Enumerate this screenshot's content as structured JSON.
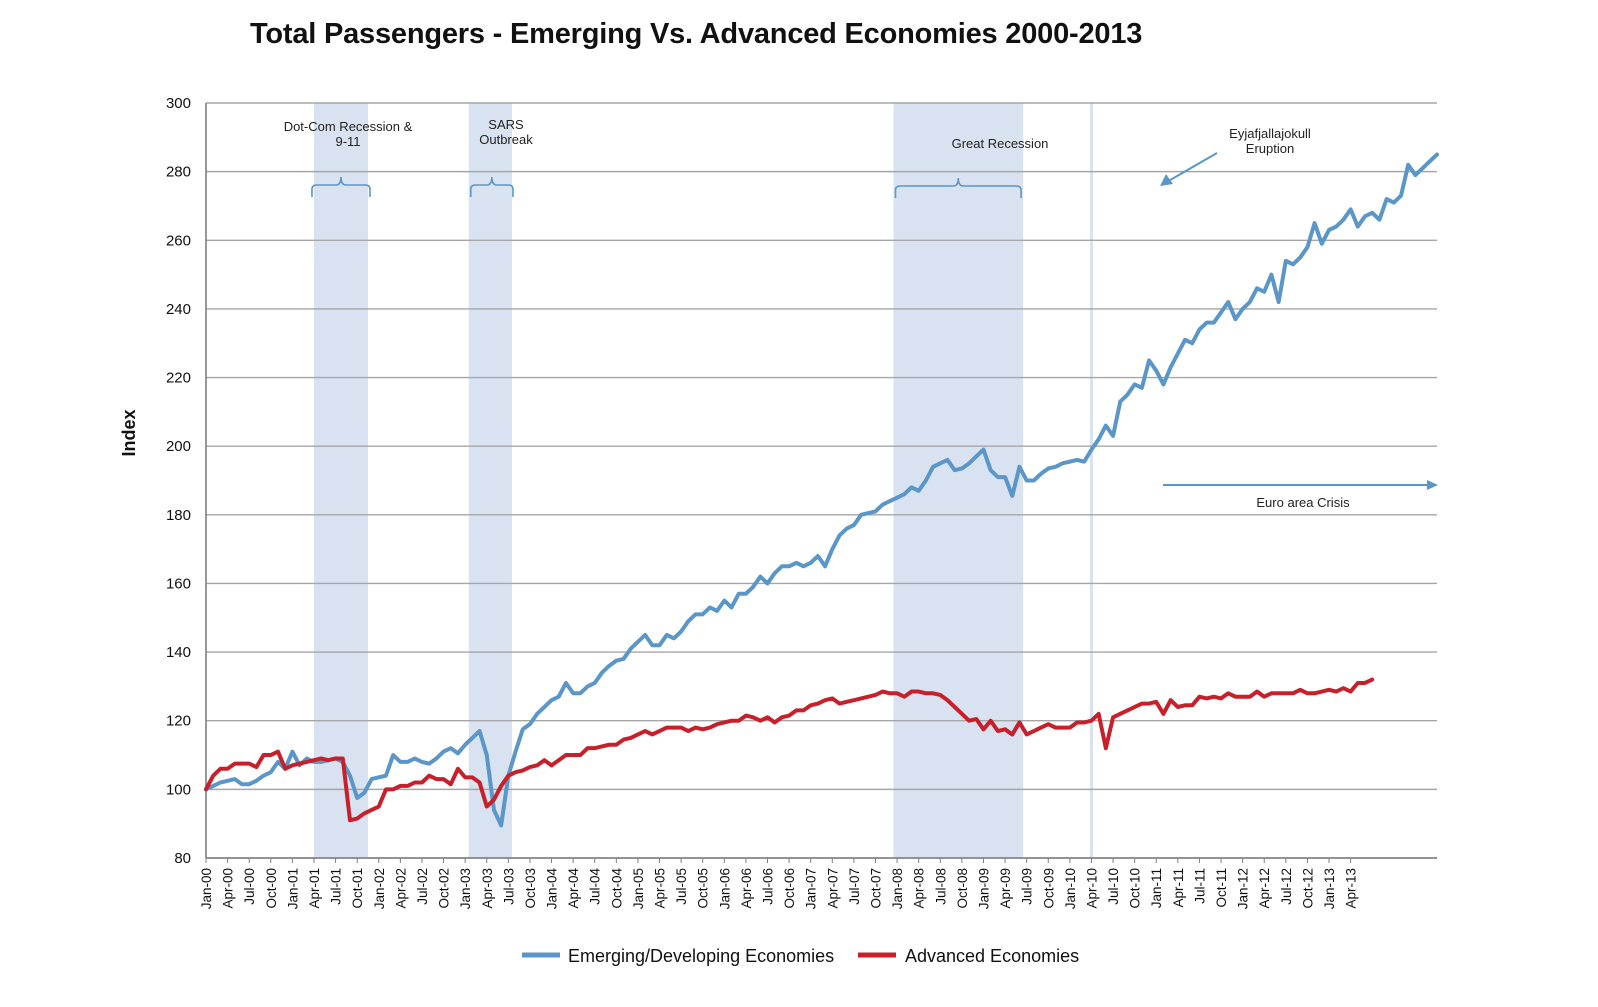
{
  "chart_data": {
    "type": "line",
    "title": "Total Passengers - Emerging Vs. Advanced Economies 2000-2013",
    "ylabel": "Index",
    "xlabel": "",
    "ylim": [
      80,
      300
    ],
    "yticks": [
      80,
      100,
      120,
      140,
      160,
      180,
      200,
      220,
      240,
      260,
      280,
      300
    ],
    "grid": "horizontal",
    "legend": "bottom-center",
    "x_start": "Jan-00",
    "x_tick_labels": [
      "Jan-00",
      "Apr-00",
      "Jul-00",
      "Oct-00",
      "Jan-01",
      "Apr-01",
      "Jul-01",
      "Oct-01",
      "Jan-02",
      "Apr-02",
      "Jul-02",
      "Oct-02",
      "Jan-03",
      "Apr-03",
      "Jul-03",
      "Oct-03",
      "Jan-04",
      "Apr-04",
      "Jul-04",
      "Oct-04",
      "Jan-05",
      "Apr-05",
      "Jul-05",
      "Oct-05",
      "Jan-06",
      "Apr-06",
      "Jul-06",
      "Oct-06",
      "Jan-07",
      "Apr-07",
      "Jul-07",
      "Oct-07",
      "Jan-08",
      "Apr-08",
      "Jul-08",
      "Oct-08",
      "Jan-09",
      "Apr-09",
      "Jul-09",
      "Oct-09",
      "Jan-10",
      "Apr-10",
      "Jul-10",
      "Oct-10",
      "Jan-11",
      "Apr-11",
      "Jul-11",
      "Oct-11",
      "Jan-12",
      "Apr-12",
      "Jul-12",
      "Oct-12",
      "Jan-13",
      "Apr-13"
    ],
    "series": [
      {
        "name": "Emerging/Developing Economies",
        "color": "#5a96c8",
        "values": [
          100,
          101,
          102,
          102.5,
          103,
          101.5,
          101.5,
          102.5,
          104,
          105,
          108,
          106,
          111,
          107,
          109,
          108,
          108,
          108.5,
          109,
          108,
          104,
          97.5,
          99,
          103,
          103.5,
          104,
          110,
          108,
          108,
          109,
          108,
          107.5,
          109,
          111,
          112,
          110.5,
          113,
          115,
          117,
          110,
          94,
          89.5,
          104,
          111,
          117.5,
          119,
          122,
          124,
          126,
          127,
          131,
          128,
          128,
          130,
          131,
          134,
          136,
          137.5,
          138,
          141,
          143,
          145,
          142,
          142,
          145,
          144,
          146,
          149,
          151,
          151,
          153,
          152,
          155,
          153,
          157,
          157,
          159,
          162,
          160,
          163,
          165,
          165,
          166,
          165,
          166,
          168,
          165,
          170,
          174,
          176,
          177,
          180,
          180.5,
          181,
          183,
          184,
          185,
          186,
          188,
          187,
          190,
          194,
          195,
          196,
          193,
          193.5,
          195,
          197,
          199,
          193,
          191,
          191,
          185.5,
          194,
          190,
          190,
          192,
          193.5,
          194,
          195,
          195.5,
          196,
          195.5,
          199,
          202,
          206,
          203,
          213,
          215,
          218,
          217,
          225,
          222,
          218,
          223,
          227,
          231,
          230,
          234,
          236,
          236,
          239,
          242,
          237,
          240,
          242,
          246,
          245,
          250,
          242,
          254,
          253,
          255,
          258,
          265,
          259,
          263,
          264,
          266,
          269,
          264,
          267,
          268,
          266,
          272,
          271,
          273,
          282,
          279,
          281,
          283,
          285
        ]
      },
      {
        "name": "Advanced Economies",
        "color": "#c8202a",
        "values": [
          100,
          104,
          106,
          106,
          107.5,
          107.5,
          107.5,
          106.5,
          110,
          110,
          111,
          106,
          107,
          107.5,
          108,
          108.5,
          109,
          108.5,
          109,
          109,
          91,
          91.5,
          93,
          94,
          95,
          100,
          100,
          101,
          101,
          102,
          102,
          104,
          103,
          103,
          101.5,
          106,
          103.5,
          103.5,
          102,
          95,
          97,
          101,
          104,
          105,
          105.5,
          106.5,
          107,
          108.5,
          107,
          108.5,
          110,
          110,
          110,
          112,
          112,
          112.5,
          113,
          113,
          114.5,
          115,
          116,
          117,
          116,
          117,
          118,
          118,
          118,
          117,
          118,
          117.5,
          118,
          119,
          119.5,
          120,
          120,
          121.5,
          121,
          120,
          121,
          119.5,
          121,
          121.5,
          123,
          123,
          124.5,
          125,
          126,
          126.5,
          125,
          125.5,
          126,
          126.5,
          127,
          127.5,
          128.5,
          128,
          128,
          127,
          128.5,
          128.5,
          128,
          128,
          127.5,
          126,
          124,
          122,
          120,
          120.5,
          117.5,
          120,
          117,
          117.5,
          116,
          119.5,
          116,
          117,
          118,
          119,
          118,
          118,
          118,
          119.5,
          119.5,
          120,
          122,
          112,
          121,
          122,
          123,
          124,
          125,
          125,
          125.5,
          122,
          126,
          124,
          124.5,
          124.5,
          127,
          126.5,
          127,
          126.5,
          128,
          127,
          127,
          127,
          128.5,
          127,
          128,
          128,
          128,
          128,
          129,
          128,
          128,
          128.5,
          129,
          128.5,
          129.5,
          128.5,
          131,
          131,
          132
        ]
      }
    ],
    "shaded_periods": [
      {
        "label": "Dot-Com Recession & 9-11",
        "start": 15,
        "end": 22.5
      },
      {
        "label": "SARS Outbreak",
        "start": 36.5,
        "end": 42.5
      },
      {
        "label": "Great Recession",
        "start": 95.5,
        "end": 113.5
      }
    ],
    "annotations": [
      {
        "label": "Eyjafjallajokull Eruption",
        "month": 123
      },
      {
        "label": "Euro area Crisis"
      }
    ]
  }
}
